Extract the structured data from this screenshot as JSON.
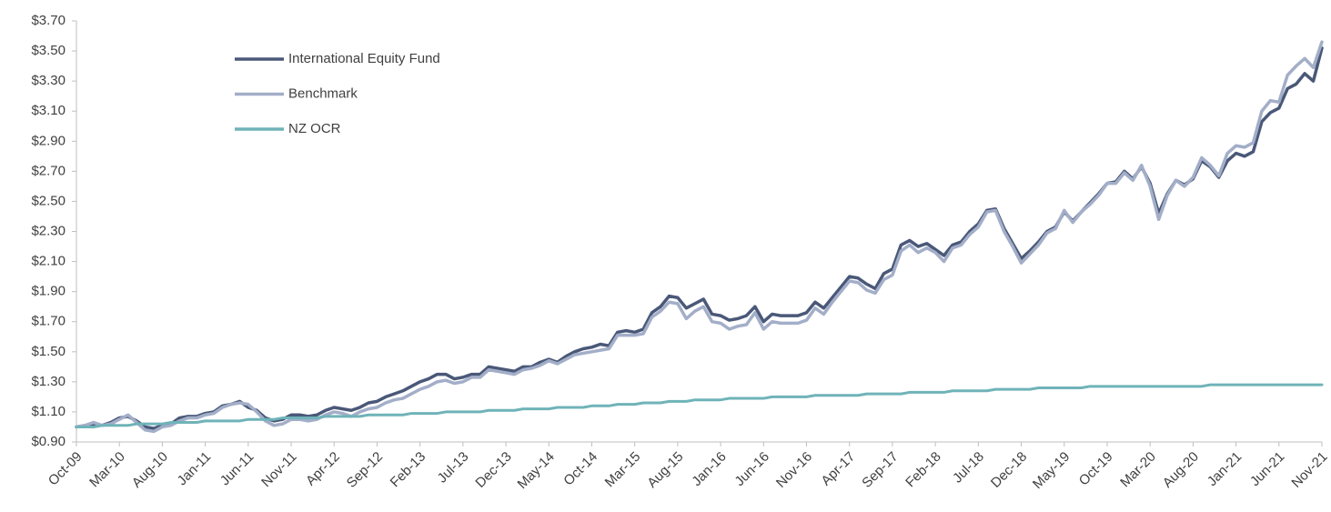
{
  "chart_data": {
    "type": "line",
    "categories": [
      "Oct-09",
      null,
      null,
      null,
      null,
      "Mar-10",
      null,
      null,
      null,
      null,
      "Aug-10",
      null,
      null,
      null,
      null,
      "Jan-11",
      null,
      null,
      null,
      null,
      "Jun-11",
      null,
      null,
      null,
      null,
      "Nov-11",
      null,
      null,
      null,
      null,
      "Apr-12",
      null,
      null,
      null,
      null,
      "Sep-12",
      null,
      null,
      null,
      null,
      "Feb-13",
      null,
      null,
      null,
      null,
      "Jul-13",
      null,
      null,
      null,
      null,
      "Dec-13",
      null,
      null,
      null,
      null,
      "May-14",
      null,
      null,
      null,
      null,
      "Oct-14",
      null,
      null,
      null,
      null,
      "Mar-15",
      null,
      null,
      null,
      null,
      "Aug-15",
      null,
      null,
      null,
      null,
      "Jan-16",
      null,
      null,
      null,
      null,
      "Jun-16",
      null,
      null,
      null,
      null,
      "Nov-16",
      null,
      null,
      null,
      null,
      "Apr-17",
      null,
      null,
      null,
      null,
      "Sep-17",
      null,
      null,
      null,
      null,
      "Feb-18",
      null,
      null,
      null,
      null,
      "Jul-18",
      null,
      null,
      null,
      null,
      "Dec-18",
      null,
      null,
      null,
      null,
      "May-19",
      null,
      null,
      null,
      null,
      "Oct-19",
      null,
      null,
      null,
      null,
      "Mar-20",
      null,
      null,
      null,
      null,
      "Aug-20",
      null,
      null,
      null,
      null,
      "Jan-21",
      null,
      null,
      null,
      null,
      "Jun-21",
      null,
      null,
      null,
      null,
      "Nov-21"
    ],
    "series": [
      {
        "name": "International Equity Fund",
        "color": "#4a5878",
        "values": [
          1.0,
          1.01,
          1.02,
          1.01,
          1.03,
          1.06,
          1.07,
          1.04,
          1.0,
          0.99,
          1.01,
          1.02,
          1.06,
          1.07,
          1.07,
          1.09,
          1.1,
          1.14,
          1.15,
          1.17,
          1.13,
          1.11,
          1.06,
          1.04,
          1.05,
          1.08,
          1.08,
          1.07,
          1.08,
          1.11,
          1.13,
          1.12,
          1.11,
          1.13,
          1.16,
          1.17,
          1.2,
          1.22,
          1.24,
          1.27,
          1.3,
          1.32,
          1.35,
          1.35,
          1.32,
          1.33,
          1.35,
          1.35,
          1.4,
          1.39,
          1.38,
          1.37,
          1.4,
          1.4,
          1.43,
          1.45,
          1.43,
          1.47,
          1.5,
          1.52,
          1.53,
          1.55,
          1.54,
          1.63,
          1.64,
          1.63,
          1.65,
          1.76,
          1.8,
          1.87,
          1.86,
          1.79,
          1.82,
          1.85,
          1.75,
          1.74,
          1.71,
          1.72,
          1.74,
          1.8,
          1.7,
          1.75,
          1.74,
          1.74,
          1.74,
          1.76,
          1.83,
          1.79,
          1.86,
          1.93,
          2.0,
          1.99,
          1.95,
          1.92,
          2.02,
          2.05,
          2.21,
          2.24,
          2.2,
          2.22,
          2.18,
          2.14,
          2.21,
          2.23,
          2.3,
          2.35,
          2.44,
          2.45,
          2.32,
          2.22,
          2.12,
          2.17,
          2.23,
          2.3,
          2.33,
          2.43,
          2.37,
          2.43,
          2.49,
          2.55,
          2.62,
          2.63,
          2.7,
          2.65,
          2.73,
          2.62,
          2.42,
          2.55,
          2.64,
          2.61,
          2.65,
          2.77,
          2.73,
          2.66,
          2.77,
          2.82,
          2.8,
          2.83,
          3.03,
          3.09,
          3.12,
          3.25,
          3.28,
          3.35,
          3.3,
          3.52
        ]
      },
      {
        "name": "Benchmark",
        "color": "#a3aec8",
        "values": [
          1.0,
          1.01,
          1.03,
          1.01,
          1.02,
          1.05,
          1.08,
          1.03,
          0.98,
          0.97,
          1.0,
          1.01,
          1.04,
          1.06,
          1.06,
          1.08,
          1.09,
          1.13,
          1.15,
          1.16,
          1.15,
          1.1,
          1.04,
          1.01,
          1.02,
          1.05,
          1.05,
          1.04,
          1.05,
          1.08,
          1.1,
          1.09,
          1.07,
          1.1,
          1.12,
          1.13,
          1.16,
          1.18,
          1.19,
          1.22,
          1.25,
          1.27,
          1.3,
          1.31,
          1.29,
          1.3,
          1.33,
          1.33,
          1.38,
          1.37,
          1.36,
          1.35,
          1.38,
          1.39,
          1.41,
          1.44,
          1.42,
          1.45,
          1.48,
          1.49,
          1.5,
          1.51,
          1.52,
          1.61,
          1.61,
          1.61,
          1.62,
          1.73,
          1.77,
          1.83,
          1.82,
          1.72,
          1.77,
          1.8,
          1.7,
          1.69,
          1.65,
          1.67,
          1.68,
          1.76,
          1.65,
          1.7,
          1.69,
          1.69,
          1.69,
          1.71,
          1.79,
          1.75,
          1.83,
          1.9,
          1.97,
          1.96,
          1.91,
          1.89,
          1.98,
          2.01,
          2.17,
          2.21,
          2.16,
          2.19,
          2.16,
          2.1,
          2.19,
          2.21,
          2.28,
          2.33,
          2.43,
          2.44,
          2.3,
          2.2,
          2.09,
          2.15,
          2.21,
          2.29,
          2.32,
          2.44,
          2.36,
          2.43,
          2.48,
          2.54,
          2.62,
          2.62,
          2.69,
          2.64,
          2.74,
          2.6,
          2.38,
          2.54,
          2.64,
          2.6,
          2.66,
          2.79,
          2.74,
          2.67,
          2.82,
          2.87,
          2.86,
          2.89,
          3.1,
          3.17,
          3.16,
          3.34,
          3.4,
          3.45,
          3.39,
          3.56
        ]
      },
      {
        "name": "NZ OCR",
        "color": "#6fb3b8",
        "values": [
          1.0,
          1.0,
          1.0,
          1.01,
          1.01,
          1.01,
          1.01,
          1.02,
          1.02,
          1.02,
          1.02,
          1.03,
          1.03,
          1.03,
          1.03,
          1.04,
          1.04,
          1.04,
          1.04,
          1.04,
          1.05,
          1.05,
          1.05,
          1.05,
          1.06,
          1.06,
          1.06,
          1.06,
          1.06,
          1.07,
          1.07,
          1.07,
          1.07,
          1.07,
          1.08,
          1.08,
          1.08,
          1.08,
          1.08,
          1.09,
          1.09,
          1.09,
          1.09,
          1.1,
          1.1,
          1.1,
          1.1,
          1.1,
          1.11,
          1.11,
          1.11,
          1.11,
          1.12,
          1.12,
          1.12,
          1.12,
          1.13,
          1.13,
          1.13,
          1.13,
          1.14,
          1.14,
          1.14,
          1.15,
          1.15,
          1.15,
          1.16,
          1.16,
          1.16,
          1.17,
          1.17,
          1.17,
          1.18,
          1.18,
          1.18,
          1.18,
          1.19,
          1.19,
          1.19,
          1.19,
          1.19,
          1.2,
          1.2,
          1.2,
          1.2,
          1.2,
          1.21,
          1.21,
          1.21,
          1.21,
          1.21,
          1.21,
          1.22,
          1.22,
          1.22,
          1.22,
          1.22,
          1.23,
          1.23,
          1.23,
          1.23,
          1.23,
          1.24,
          1.24,
          1.24,
          1.24,
          1.24,
          1.25,
          1.25,
          1.25,
          1.25,
          1.25,
          1.26,
          1.26,
          1.26,
          1.26,
          1.26,
          1.26,
          1.27,
          1.27,
          1.27,
          1.27,
          1.27,
          1.27,
          1.27,
          1.27,
          1.27,
          1.27,
          1.27,
          1.27,
          1.27,
          1.27,
          1.28,
          1.28,
          1.28,
          1.28,
          1.28,
          1.28,
          1.28,
          1.28,
          1.28,
          1.28,
          1.28,
          1.28,
          1.28,
          1.28
        ]
      }
    ],
    "ylim": [
      0.9,
      3.7
    ],
    "yticks": [
      {
        "value": 0.9,
        "label": "$0.90"
      },
      {
        "value": 1.1,
        "label": "$1.10"
      },
      {
        "value": 1.3,
        "label": "$1.30"
      },
      {
        "value": 1.5,
        "label": "$1.50"
      },
      {
        "value": 1.7,
        "label": "$1.70"
      },
      {
        "value": 1.9,
        "label": "$1.90"
      },
      {
        "value": 2.1,
        "label": "$2.10"
      },
      {
        "value": 2.3,
        "label": "$2.30"
      },
      {
        "value": 2.5,
        "label": "$2.50"
      },
      {
        "value": 2.7,
        "label": "$2.70"
      },
      {
        "value": 2.9,
        "label": "$2.90"
      },
      {
        "value": 3.1,
        "label": "$3.10"
      },
      {
        "value": 3.3,
        "label": "$3.30"
      },
      {
        "value": 3.5,
        "label": "$3.50"
      },
      {
        "value": 3.7,
        "label": "$3.70"
      }
    ],
    "grid": false,
    "legend": "upper left"
  }
}
